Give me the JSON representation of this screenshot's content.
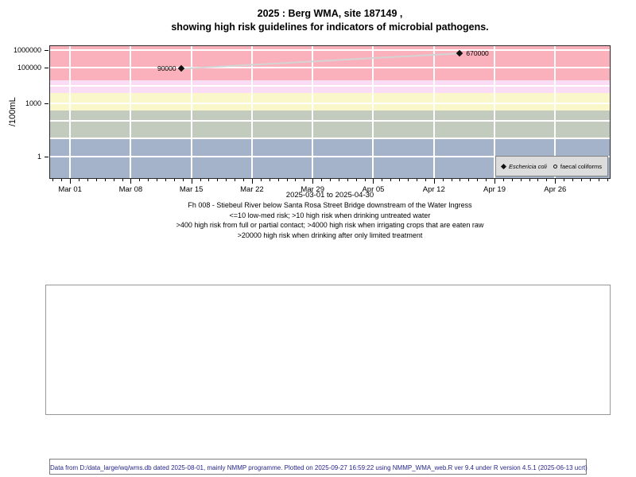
{
  "title": {
    "line1": "2025 : Berg WMA, site 187149 ,",
    "line2": "showing high risk guidelines for indicators of microbial pathogens."
  },
  "chart_data": {
    "type": "line",
    "title": "2025 : Berg WMA, site 187149, showing high risk guidelines for indicators of microbial pathogens.",
    "xlabel": "2025-03-01 to 2025-04-30",
    "ylabel": "/100mL",
    "y_scale": "log10",
    "y_log_range": [
      -1.28,
      6.28
    ],
    "y_tick_values": [
      1,
      1000,
      100000,
      1000000
    ],
    "y_tick_labels": [
      "1",
      "1000",
      "100000",
      "1000000"
    ],
    "gridline_decades": [
      0,
      1,
      2,
      3,
      4,
      5,
      6
    ],
    "x_start_date": "2025-03-01",
    "x_end_date": "2025-04-30",
    "x_range_days": [
      -2.4,
      62.4
    ],
    "x_tick_days": [
      0,
      7,
      14,
      21,
      28,
      35,
      42,
      49,
      56
    ],
    "x_tick_labels": [
      "Mar 01",
      "Mar 08",
      "Mar 15",
      "Mar 22",
      "Mar 29",
      "Apr 05",
      "Apr 12",
      "Apr 19",
      "Apr 26"
    ],
    "x_minor_tick_days_from": -2,
    "x_minor_tick_days_to": 62,
    "bands": [
      {
        "name": "low-med risk <=10",
        "from": 0.0525,
        "to": 10,
        "color": "#a4b3ca"
      },
      {
        "name": "high risk drinking untreated water >10",
        "from": 10,
        "to": 400,
        "color": "#c3cbbf"
      },
      {
        "name": "high risk full or partial contact >400",
        "from": 400,
        "to": 4000,
        "color": "#faf7cb"
      },
      {
        "name": "high risk irrigating crops eaten raw >4000",
        "from": 4000,
        "to": 20000,
        "color": "#fbdcf5"
      },
      {
        "name": "high risk drinking after limited treatment >20000",
        "from": 20000,
        "to": 1905461,
        "color": "#fab1bc"
      }
    ],
    "series": [
      {
        "name": "Eschericia coli",
        "marker": "filled-diamond",
        "marker_color": "#111111",
        "line_color": "#d4d4d4",
        "points": [
          {
            "day": 12.8,
            "value": 90000,
            "label": "90000",
            "label_side": "left"
          },
          {
            "day": 45.0,
            "value": 670000,
            "label": "670000",
            "label_side": "right"
          }
        ]
      },
      {
        "name": "faecal coliforms",
        "marker": "open-circle",
        "marker_color": "#111111",
        "points": []
      }
    ],
    "legend_position": "bottom-right-inside",
    "legend": [
      {
        "symbol": "filled-diamond",
        "label": "Eschericia coli",
        "italic": true
      },
      {
        "symbol": "open-circle",
        "label": "faecal coliforms",
        "italic": false
      }
    ]
  },
  "caption": {
    "line1": "Fh 008 - Stiebeul River below Santa Rosa Street Bridge downstream of the Water Ingress",
    "line2": "<=10 low-med risk; >10 high risk when drinking untreated water",
    "line3": ">400 high risk from full or partial contact; >4000 high risk when irrigating crops that are eaten raw",
    "line4": ">20000 high risk when drinking after only limited treatment"
  },
  "footer": "Data from D:/data_large/wq/wms.db dated 2025-08-01, mainly NMMP programme. Plotted on 2025-09-27 16:59:22 using NMMP_WMA_web.R ver 9.4 under R version 4.5.1 (2025-06-13 ucrt)"
}
